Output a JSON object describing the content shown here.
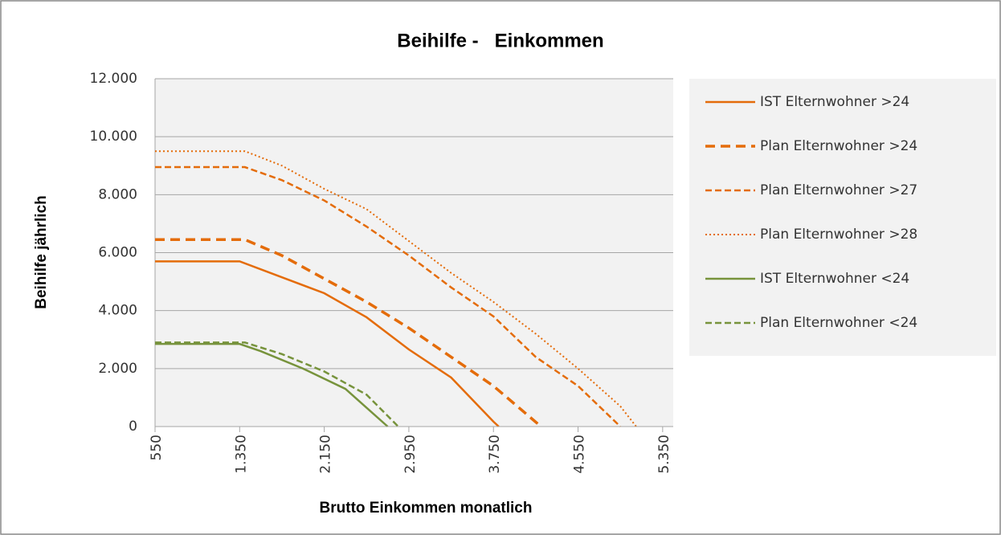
{
  "chart_data": {
    "type": "line",
    "title": "Beihilfe -   Einkommen",
    "xlabel": "Brutto Einkommen monatlich",
    "ylabel": "Beihilfe jährlich",
    "xlim": [
      550,
      5450
    ],
    "xticks": [
      550,
      {
        "value": 1350,
        "label": "1.350"
      },
      {
        "value": 2150,
        "label": "2.150"
      },
      {
        "value": 2950,
        "label": "2.950"
      },
      {
        "value": 3750,
        "label": "3.750"
      },
      {
        "value": 4550,
        "label": "4.550"
      },
      {
        "value": 5350,
        "label": "5.350"
      }
    ],
    "ylim": [
      0,
      12000
    ],
    "yticks": [
      0,
      {
        "value": 2000,
        "label": "2.000"
      },
      {
        "value": 4000,
        "label": "4.000"
      },
      {
        "value": 6000,
        "label": "6.000"
      },
      {
        "value": 8000,
        "label": "8.000"
      },
      {
        "value": 10000,
        "label": "10.000"
      },
      {
        "value": 12000,
        "label": "12.000"
      }
    ],
    "grid": true,
    "legend": "right",
    "series": [
      {
        "name": "IST Elternwohner >24",
        "color": "#e46c0a",
        "dash": "solid",
        "x": [
          550,
          1350,
          1750,
          2150,
          2550,
          2950,
          3350,
          3750,
          3800
        ],
        "values": [
          5700,
          5700,
          5150,
          4600,
          3770,
          2660,
          1690,
          170,
          0
        ]
      },
      {
        "name": "Plan Elternwohner >24",
        "color": "#e46c0a",
        "dash": "dashed-thick",
        "x": [
          550,
          1400,
          1750,
          2150,
          2550,
          2950,
          3350,
          3750,
          4200
        ],
        "values": [
          6450,
          6450,
          5900,
          5100,
          4300,
          3400,
          2400,
          1400,
          0
        ]
      },
      {
        "name": "Plan Elternwohner >27",
        "color": "#e46c0a",
        "dash": "dashed",
        "x": [
          550,
          1400,
          1750,
          2150,
          2550,
          2950,
          3350,
          3750,
          4150,
          4550,
          4950
        ],
        "values": [
          8950,
          8950,
          8500,
          7800,
          6900,
          5900,
          4800,
          3800,
          2400,
          1400,
          0
        ]
      },
      {
        "name": "Plan Elternwohner >28",
        "color": "#e46c0a",
        "dash": "dotted",
        "x": [
          550,
          1400,
          1750,
          2150,
          2550,
          2950,
          3350,
          3750,
          4150,
          4550,
          4950,
          5100
        ],
        "values": [
          9500,
          9500,
          9000,
          8200,
          7500,
          6400,
          5300,
          4300,
          3200,
          2000,
          700,
          0
        ]
      },
      {
        "name": "IST Elternwohner <24",
        "color": "#77933c",
        "dash": "solid",
        "x": [
          550,
          1350,
          1550,
          1950,
          2350,
          2750
        ],
        "values": [
          2850,
          2850,
          2600,
          2000,
          1300,
          0
        ]
      },
      {
        "name": "Plan Elternwohner <24",
        "color": "#77933c",
        "dash": "dashed",
        "x": [
          550,
          1400,
          1750,
          2150,
          2550,
          2850
        ],
        "values": [
          2900,
          2900,
          2500,
          1900,
          1100,
          0
        ]
      }
    ]
  }
}
